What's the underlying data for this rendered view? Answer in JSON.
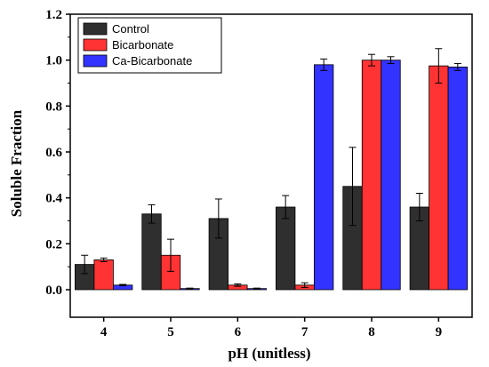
{
  "chart_data": {
    "type": "bar",
    "xlabel": "pH (unitless)",
    "ylabel": "Soluble Fraction",
    "categories": [
      "4",
      "5",
      "6",
      "7",
      "8",
      "9"
    ],
    "ylim": [
      -0.12,
      1.2
    ],
    "yticks": [
      "0.0",
      "0.2",
      "0.4",
      "0.6",
      "0.8",
      "1.0",
      "1.2"
    ],
    "legend_position": "top-left",
    "series": [
      {
        "name": "Control",
        "color": "#2f2f2f",
        "values": [
          0.11,
          0.33,
          0.31,
          0.36,
          0.45,
          0.36
        ],
        "errors": [
          0.04,
          0.04,
          0.085,
          0.05,
          0.17,
          0.06
        ]
      },
      {
        "name": "Bicarbonate",
        "color": "#ff3333",
        "values": [
          0.13,
          0.15,
          0.02,
          0.02,
          1.0,
          0.975
        ],
        "errors": [
          0.008,
          0.07,
          0.005,
          0.01,
          0.025,
          0.075
        ]
      },
      {
        "name": "Ca-Bicarbonate",
        "color": "#3333ff",
        "values": [
          0.02,
          0.005,
          0.005,
          0.98,
          1.0,
          0.97
        ],
        "errors": [
          0.003,
          0.002,
          0.002,
          0.025,
          0.015,
          0.015
        ]
      }
    ]
  }
}
